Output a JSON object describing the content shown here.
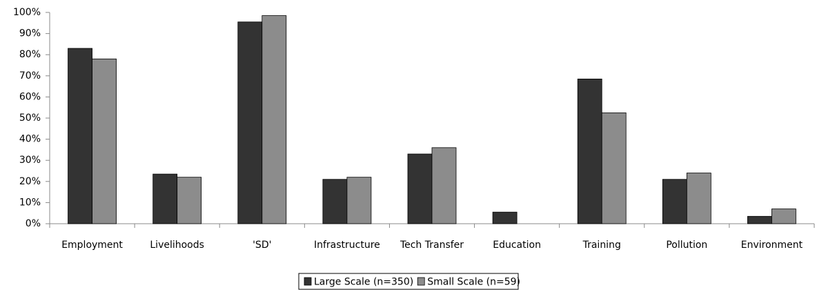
{
  "chart_data": {
    "type": "bar",
    "categories": [
      "Employment",
      "Livelihoods",
      "'SD'",
      "Infrastructure",
      "Tech Transfer",
      "Education",
      "Training",
      "Pollution",
      "Environment"
    ],
    "series": [
      {
        "name": "Large Scale (n=350)",
        "color": "#333333",
        "values": [
          83,
          23.5,
          95.5,
          21,
          33,
          5.5,
          68.5,
          21,
          3.5
        ]
      },
      {
        "name": "Small Scale (n=59)",
        "color": "#8c8c8c",
        "values": [
          78,
          22,
          98.5,
          22,
          36,
          0,
          52.5,
          24,
          7
        ]
      }
    ],
    "ylim": [
      0,
      100
    ],
    "yticks": [
      {
        "value": 0,
        "label": "0%"
      },
      {
        "value": 10,
        "label": "10%"
      },
      {
        "value": 20,
        "label": "20%"
      },
      {
        "value": 30,
        "label": "30%"
      },
      {
        "value": 40,
        "label": "40%"
      },
      {
        "value": 50,
        "label": "50%"
      },
      {
        "value": 60,
        "label": "60%"
      },
      {
        "value": 70,
        "label": "70%"
      },
      {
        "value": 80,
        "label": "80%"
      },
      {
        "value": 90,
        "label": "90%"
      },
      {
        "value": 100,
        "label": "100%"
      }
    ],
    "grid": false,
    "legend": "bottom"
  }
}
